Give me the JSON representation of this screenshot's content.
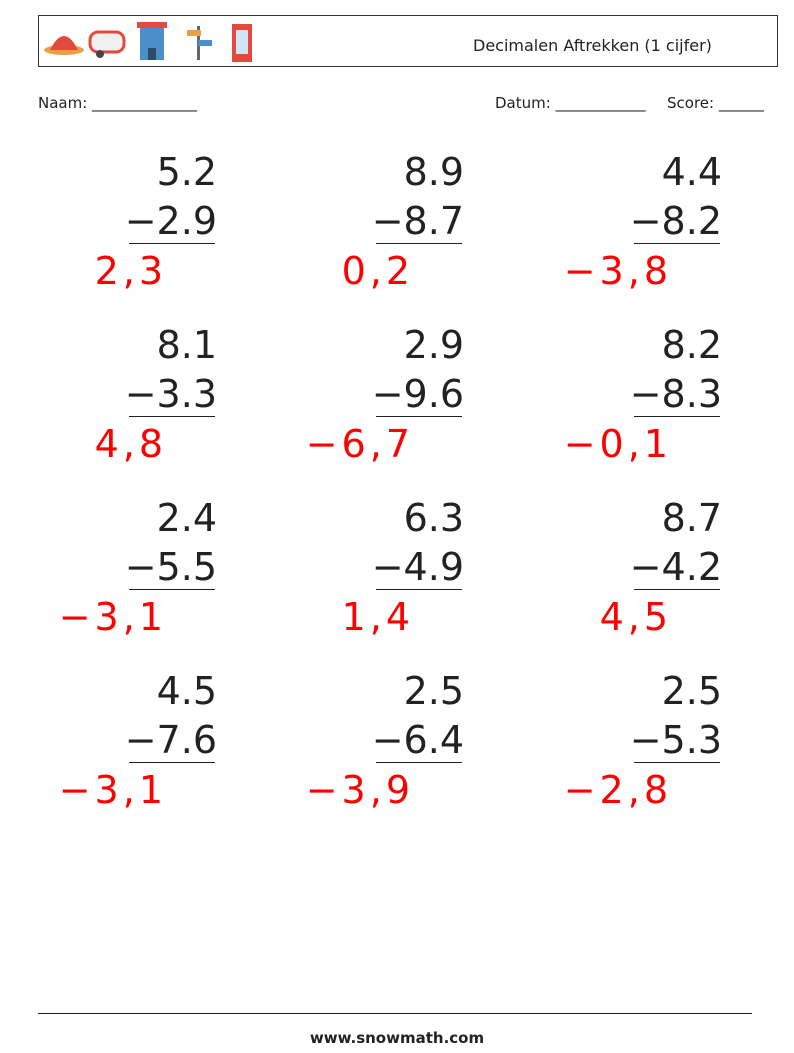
{
  "header": {
    "title": "Decimalen Aftrekken (1 cijfer)",
    "name_label": "Naam: ______________",
    "date_label": "Datum: ____________",
    "score_label": "Score: ______"
  },
  "problems": [
    {
      "top": "5.2",
      "bottom": "−2.9",
      "answer": "2,3"
    },
    {
      "top": "8.9",
      "bottom": "−8.7",
      "answer": "0,2"
    },
    {
      "top": "4.4",
      "bottom": "−8.2",
      "answer": "−3,8"
    },
    {
      "top": "8.1",
      "bottom": "−3.3",
      "answer": "4,8"
    },
    {
      "top": "2.9",
      "bottom": "−9.6",
      "answer": "−6,7"
    },
    {
      "top": "8.2",
      "bottom": "−8.3",
      "answer": "−0,1"
    },
    {
      "top": "2.4",
      "bottom": "−5.5",
      "answer": "−3,1"
    },
    {
      "top": "6.3",
      "bottom": "−4.9",
      "answer": "1,4"
    },
    {
      "top": "8.7",
      "bottom": "−4.2",
      "answer": "4,5"
    },
    {
      "top": "4.5",
      "bottom": "−7.6",
      "answer": "−3,1"
    },
    {
      "top": "2.5",
      "bottom": "−6.4",
      "answer": "−3,9"
    },
    {
      "top": "2.5",
      "bottom": "−5.3",
      "answer": "−2,8"
    }
  ],
  "footer": {
    "url": "www.snowmath.com"
  }
}
